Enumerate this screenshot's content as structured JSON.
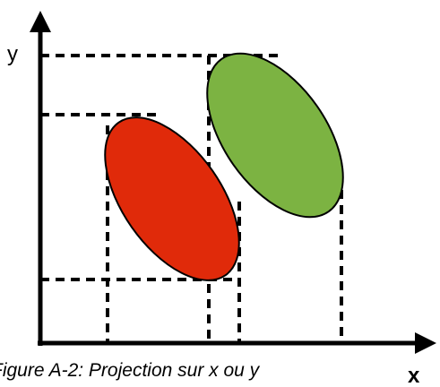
{
  "axes": {
    "x_label": "x",
    "y_label": "y"
  },
  "caption": "Figure A-2: Projection sur x ou y"
}
